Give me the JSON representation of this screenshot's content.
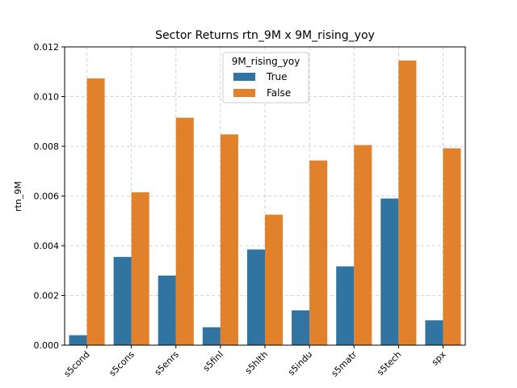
{
  "chart_data": {
    "type": "bar",
    "title": "Sector Returns rtn_9M x 9M_rising_yoy",
    "xlabel": "",
    "ylabel": "rtn_9M",
    "categories": [
      "s5cond",
      "s5cons",
      "s5enrs",
      "s5finl",
      "s5hlth",
      "s5indu",
      "s5matr",
      "s5tech",
      "spx"
    ],
    "series": [
      {
        "name": "True",
        "color": "#3274a1",
        "values": [
          0.0004,
          0.00355,
          0.0028,
          0.00072,
          0.00385,
          0.0014,
          0.00317,
          0.0059,
          0.001
        ]
      },
      {
        "name": "False",
        "color": "#e1812c",
        "values": [
          0.01073,
          0.00615,
          0.00915,
          0.00848,
          0.00525,
          0.00743,
          0.00805,
          0.01145,
          0.00792
        ]
      }
    ],
    "ylim": [
      0,
      0.012
    ],
    "yticks": [
      "0.000",
      "0.002",
      "0.004",
      "0.006",
      "0.008",
      "0.010",
      "0.012"
    ],
    "grid": true,
    "legend": {
      "title": "9M_rising_yoy",
      "placement": "top-center"
    }
  }
}
